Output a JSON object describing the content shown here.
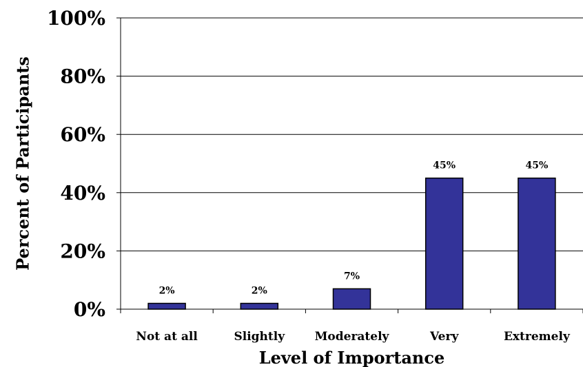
{
  "chart_data": {
    "type": "bar",
    "title": "",
    "xlabel": "Level of Importance",
    "ylabel": "Percent of Participants",
    "categories": [
      "Not at all",
      "Slightly",
      "Moderately",
      "Very",
      "Extremely"
    ],
    "values": [
      2,
      2,
      7,
      45,
      45
    ],
    "data_labels": [
      "2%",
      "2%",
      "7%",
      "45%",
      "45%"
    ],
    "ylim": [
      0,
      100
    ],
    "yticks": [
      0,
      20,
      40,
      60,
      80,
      100
    ],
    "ytick_labels": [
      "0%",
      "20%",
      "40%",
      "60%",
      "80%",
      "100%"
    ],
    "grid": true,
    "legend": "none",
    "bar_color": "#333399",
    "bar_edge_color": "#000000"
  }
}
